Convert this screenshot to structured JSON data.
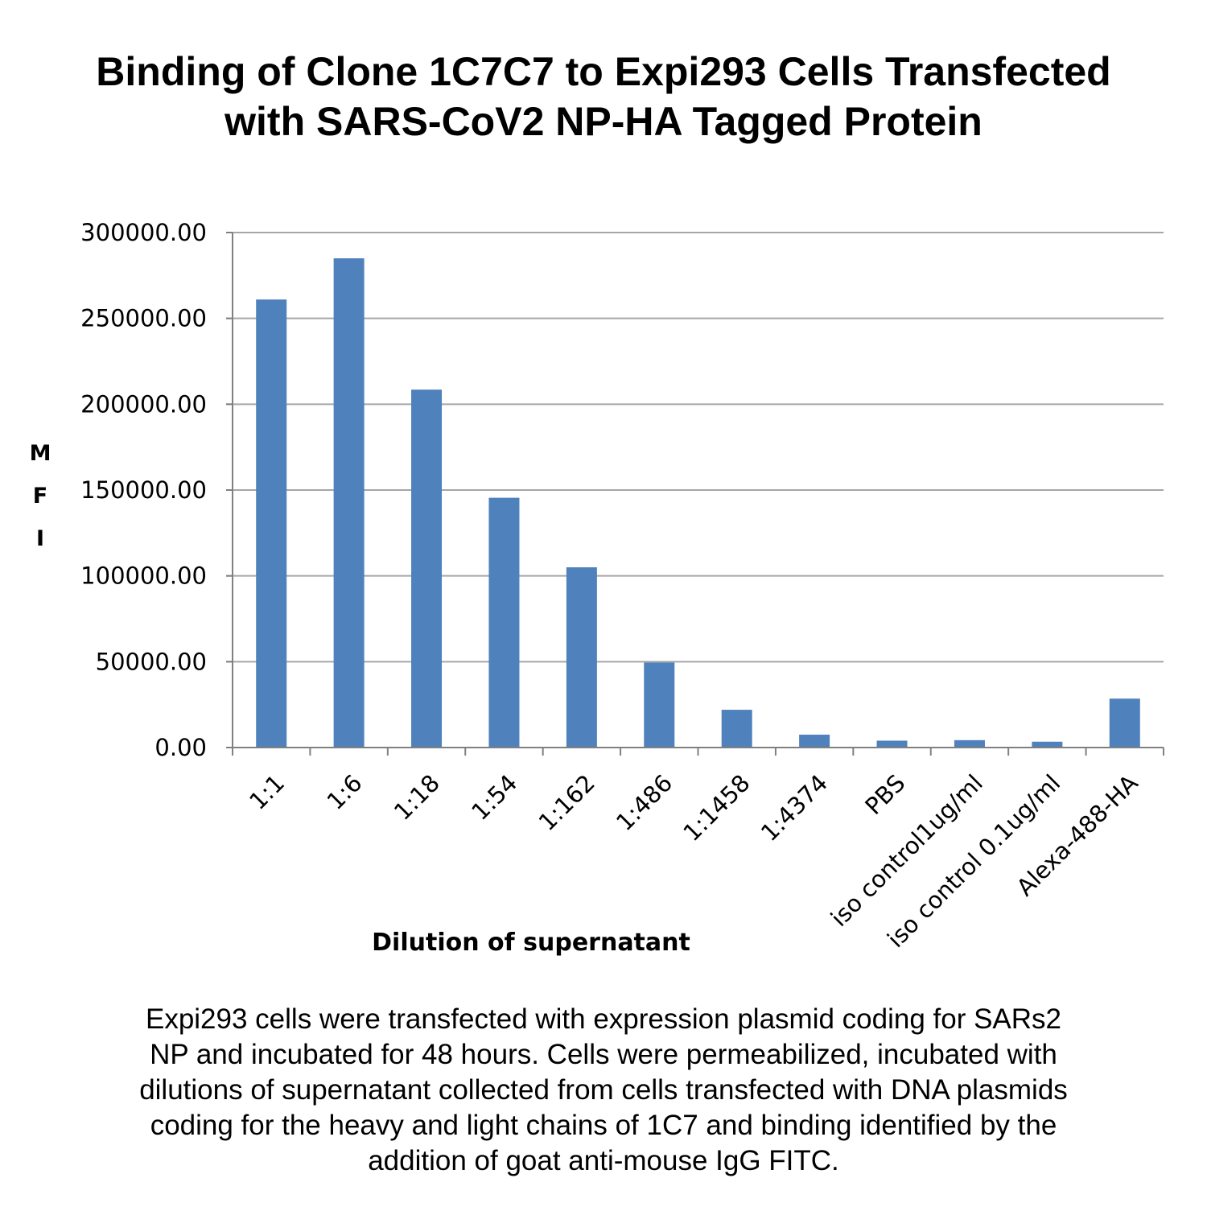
{
  "title_lines": [
    "Binding of Clone 1C7C7 to Expi293 Cells Transfected",
    "with SARS-CoV2 NP-HA Tagged Protein"
  ],
  "caption_lines": [
    "Expi293 cells were transfected with expression plasmid coding for SARs2",
    "NP and incubated for 48 hours. Cells were permeabilized, incubated with",
    "dilutions of supernatant collected from cells transfected with DNA plasmids",
    "coding for the heavy and light chains of 1C7 and binding identified by the",
    "addition of goat anti-mouse IgG FITC."
  ],
  "colors": {
    "bar": "#4f81bd",
    "grid": "#a6a6a6",
    "axis": "#808080",
    "text": "#000000"
  },
  "chart_data": {
    "type": "bar",
    "title": "Binding of Clone 1C7C7 to Expi293 Cells Transfected with SARS-CoV2 NP-HA Tagged Protein",
    "xlabel": "Dilution of supernatant",
    "ylabel_letters": [
      "M",
      "F",
      "I"
    ],
    "ylim": [
      0,
      300000
    ],
    "yticks": [
      0,
      50000,
      100000,
      150000,
      200000,
      250000,
      300000
    ],
    "ytick_labels": [
      "0.00",
      "50000.00",
      "100000.00",
      "150000.00",
      "200000.00",
      "250000.00",
      "300000.00"
    ],
    "grid": true,
    "legend": "none",
    "categories": [
      "1:1",
      "1:6",
      "1:18",
      "1:54",
      "1:162",
      "1:486",
      "1:1458",
      "1:4374",
      "PBS",
      "iso control1ug/ml",
      "iso control 0.1ug/ml",
      "Alexa-488-HA"
    ],
    "values": [
      261000,
      285000,
      208500,
      145500,
      105000,
      49500,
      22000,
      7500,
      4000,
      4300,
      3400,
      28500
    ]
  }
}
